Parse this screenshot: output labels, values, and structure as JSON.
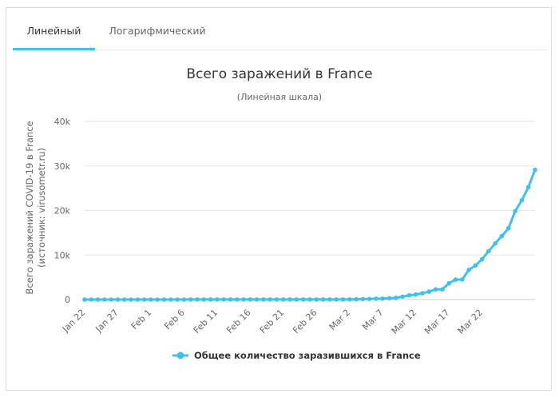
{
  "tabs": [
    {
      "label": "Линейный",
      "active": true
    },
    {
      "label": "Логарифмический",
      "active": false
    }
  ],
  "colors": {
    "series": "#3ec1ea",
    "grid": "#e6e6e6",
    "axis_text": "#666666",
    "title": "#333333"
  },
  "chart_data": {
    "type": "line",
    "title": "Всего заражений в France",
    "subtitle": "(Линейная шкала)",
    "ylabel": "Всего заражений COVID-19 в France",
    "ylabel2": "(источник: virusometr.ru)",
    "ylim": [
      0,
      40000
    ],
    "yticks": [
      0,
      10000,
      20000,
      30000,
      40000
    ],
    "ytick_labels": [
      "0",
      "10k",
      "20k",
      "30k",
      "40k"
    ],
    "xtick_labels": [
      "Jan 22",
      "Jan 27",
      "Feb 1",
      "Feb 6",
      "Feb 11",
      "Feb 16",
      "Feb 21",
      "Feb 26",
      "Mar 2",
      "Mar 7",
      "Mar 12",
      "Mar 17",
      "Mar 22"
    ],
    "x_start": "Jan 22",
    "x_end": "Mar 26",
    "grid": true,
    "legend_position": "bottom",
    "series": [
      {
        "name": "Общее количество заразившихся в France",
        "values": [
          0,
          0,
          0,
          3,
          3,
          3,
          4,
          5,
          5,
          6,
          6,
          6,
          6,
          6,
          6,
          6,
          11,
          11,
          11,
          11,
          12,
          12,
          12,
          12,
          12,
          12,
          12,
          12,
          12,
          12,
          12,
          12,
          12,
          12,
          12,
          12,
          12,
          12,
          14,
          18,
          38,
          57,
          100,
          130,
          191,
          204,
          285,
          377,
          653,
          949,
          1126,
          1412,
          1784,
          2281,
          2281,
          3661,
          4469,
          4499,
          6633,
          7652,
          9043,
          10871,
          12612,
          14282,
          16018,
          19856,
          22302,
          25233,
          29155
        ]
      }
    ]
  }
}
